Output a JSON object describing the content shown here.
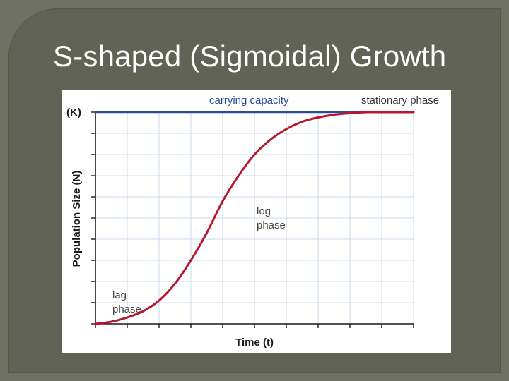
{
  "slide": {
    "title": "S-shaped (Sigmoidal) Growth"
  },
  "colors": {
    "background": "#6b6e60",
    "title": "#ffffff",
    "curve": "#b5182e",
    "capacity_line": "#2b4b9a",
    "capacity_label": "#2b4b9a",
    "grid": "#c9d8ee",
    "axis": "#1a1a1a"
  },
  "chart_data": {
    "type": "line",
    "title": "",
    "xlabel": "Time (t)",
    "ylabel": "Population Size (N)",
    "y_top_tick_label": "(K)",
    "grid": true,
    "series": [
      {
        "values_note": "",
        "x": [
          0,
          0.5,
          1,
          1.5,
          2,
          2.5,
          3,
          3.5,
          4,
          4.5,
          5,
          5.5,
          6,
          6.5,
          7,
          7.5,
          8,
          8.5,
          9,
          9.5,
          10
        ],
        "y": [
          0,
          0.01,
          0.03,
          0.06,
          0.11,
          0.19,
          0.3,
          0.43,
          0.58,
          0.7,
          0.8,
          0.87,
          0.92,
          0.955,
          0.975,
          0.988,
          0.995,
          1,
          1,
          1,
          1
        ]
      }
    ],
    "xlim": [
      0,
      10
    ],
    "ylim": [
      0,
      1
    ],
    "x_gridlines": [
      1,
      2,
      3,
      4,
      5,
      6,
      7,
      8,
      9
    ],
    "y_gridlines": [
      0.1,
      0.2,
      0.3,
      0.4,
      0.5,
      0.6,
      0.7,
      0.8,
      0.9
    ],
    "reference_line": {
      "y": 1,
      "label": "carrying capacity"
    },
    "annotations": [
      {
        "text": "stationary phase",
        "lines": [
          "stationary phase"
        ]
      },
      {
        "text": "log phase",
        "lines": [
          "log",
          "phase"
        ]
      },
      {
        "text": "lag phase",
        "lines": [
          "lag",
          "phase"
        ]
      }
    ]
  }
}
